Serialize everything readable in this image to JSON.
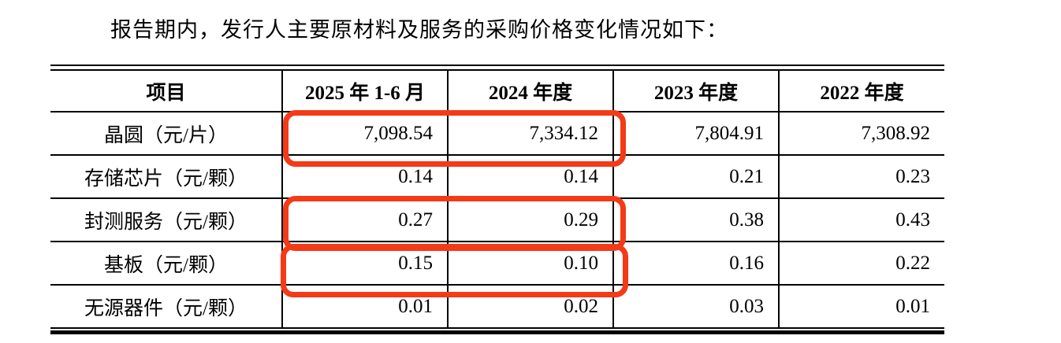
{
  "intro": {
    "text": "报告期内，发行人主要原材料及服务的采购价格变化情况如下："
  },
  "table": {
    "columns": {
      "item": "项目",
      "p2025": "2025 年 1-6 月",
      "p2024": "2024 年度",
      "p2023": "2023 年度",
      "p2022": "2022 年度"
    },
    "rows": [
      {
        "label": "晶圆（元/片）",
        "values": [
          "7,098.54",
          "7,334.12",
          "7,804.91",
          "7,308.92"
        ]
      },
      {
        "label": "存储芯片（元/颗）",
        "values": [
          "0.14",
          "0.14",
          "0.21",
          "0.23"
        ]
      },
      {
        "label": "封测服务（元/颗）",
        "values": [
          "0.27",
          "0.29",
          "0.38",
          "0.43"
        ]
      },
      {
        "label": "基板（元/颗）",
        "values": [
          "0.15",
          "0.10",
          "0.16",
          "0.22"
        ]
      },
      {
        "label": "无源器件（元/颗）",
        "values": [
          "0.01",
          "0.02",
          "0.03",
          "0.01"
        ]
      }
    ],
    "annotations": {
      "color": "#f43a17",
      "highlighted_columns": [
        "2025 年 1-6 月",
        "2024 年度"
      ],
      "highlighted_rows": [
        "晶圆（元/片）",
        "封测服务（元/颗）",
        "基板（元/颗）"
      ]
    }
  }
}
